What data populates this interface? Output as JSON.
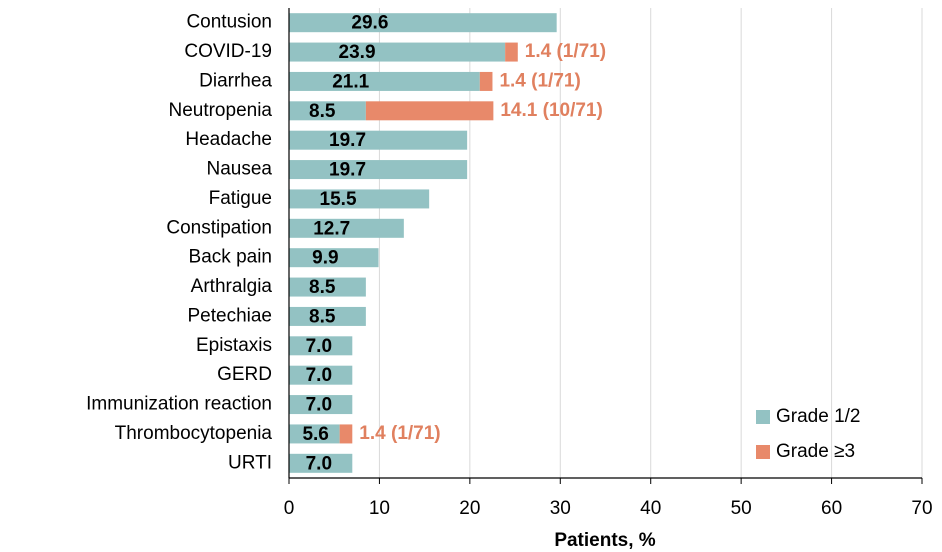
{
  "chart_data": {
    "type": "stacked_barh",
    "x_label": "Patients, %",
    "categories": [
      "Contusion",
      "COVID-19",
      "Diarrhea",
      "Neutropenia",
      "Headache",
      "Nausea",
      "Fatigue",
      "Constipation",
      "Back pain",
      "Arthralgia",
      "Petechiae",
      "Epistaxis",
      "GERD",
      "Immunization reaction",
      "Thrombocytopenia",
      "URTI"
    ],
    "series": [
      {
        "name": "Grade 1/2",
        "color": "#93c2c3",
        "values": [
          29.6,
          23.9,
          21.1,
          8.5,
          19.7,
          19.7,
          15.5,
          12.7,
          9.9,
          8.5,
          8.5,
          7.0,
          7.0,
          7.0,
          5.6,
          7.0
        ],
        "value_labels": [
          "29.6",
          "23.9",
          "21.1",
          "8.5",
          "19.7",
          "19.7",
          "15.5",
          "12.7",
          "9.9",
          "8.5",
          "8.5",
          "7.0",
          "7.0",
          "7.0",
          "5.6",
          "7.0"
        ]
      },
      {
        "name": "Grade ≥3",
        "color": "#e8896a",
        "values": [
          null,
          1.4,
          1.4,
          14.1,
          null,
          null,
          null,
          null,
          null,
          null,
          null,
          null,
          null,
          null,
          1.4,
          null
        ],
        "value_labels": [
          null,
          "1.4 (1/71)",
          "1.4 (1/71)",
          "14.1 (10/71)",
          null,
          null,
          null,
          null,
          null,
          null,
          null,
          null,
          null,
          null,
          "1.4 (1/71)",
          null
        ]
      }
    ],
    "xlim": [
      0,
      70
    ],
    "xticks": [
      0,
      10,
      20,
      30,
      40,
      50,
      60,
      70
    ],
    "grid": true,
    "legend": "lower right"
  }
}
